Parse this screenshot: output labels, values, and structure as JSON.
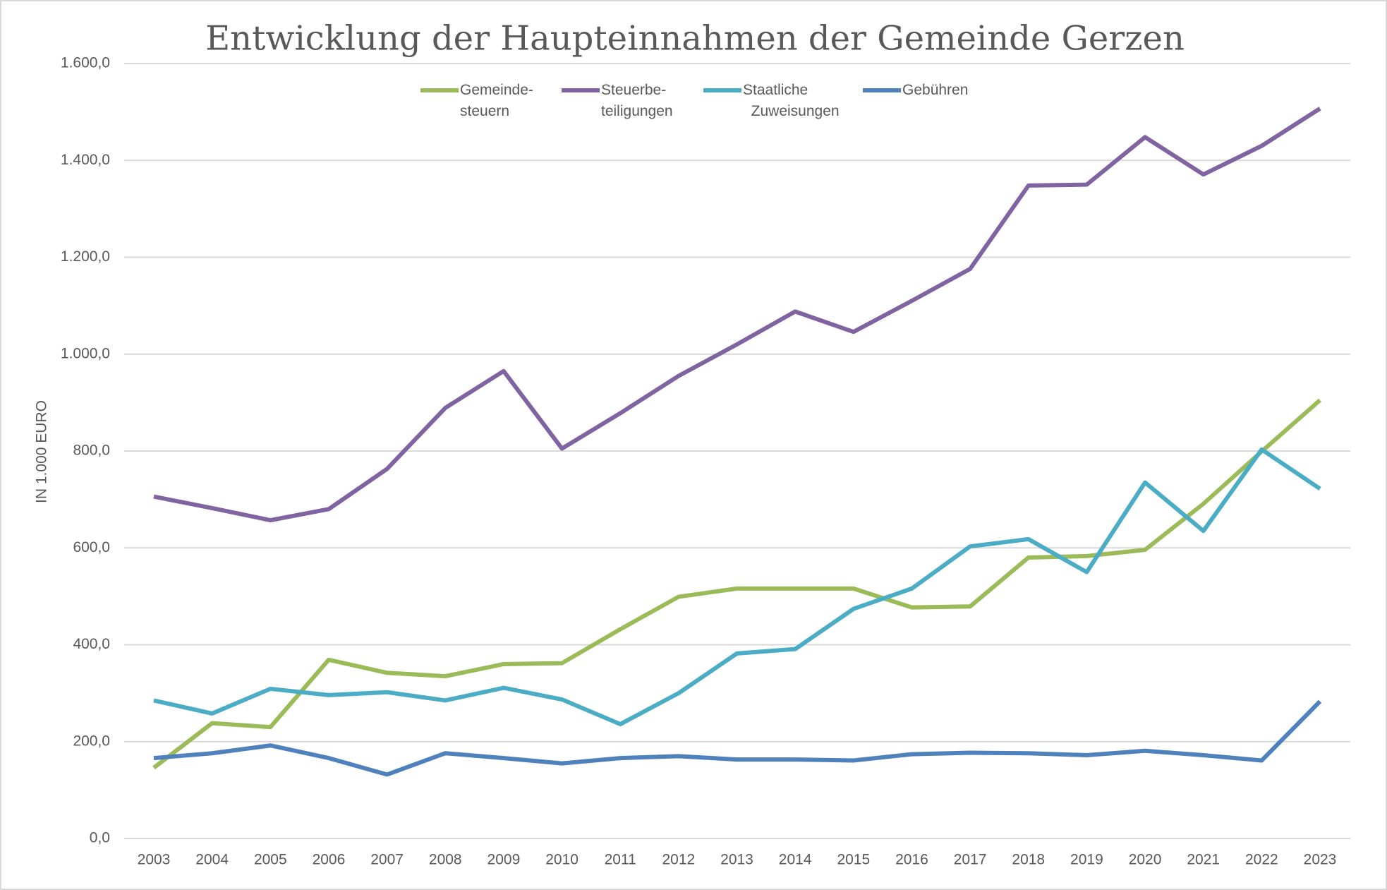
{
  "chart_data": {
    "type": "line",
    "title": "Entwicklung der Haupteinnahmen der Gemeinde Gerzen",
    "y_label": "IN 1.000 EURO",
    "categories": [
      "2003",
      "2004",
      "2005",
      "2006",
      "2007",
      "2008",
      "2009",
      "2010",
      "2011",
      "2012",
      "2013",
      "2014",
      "2015",
      "2016",
      "2017",
      "2018",
      "2019",
      "2020",
      "2021",
      "2022",
      "2023"
    ],
    "series": [
      {
        "name": "Gemeinde-\nsteuern",
        "color": "#9bbb59",
        "values": [
          146,
          238,
          230,
          369,
          342,
          335,
          360,
          362,
          432,
          499,
          516,
          516,
          516,
          477,
          479,
          580,
          583,
          596,
          691,
          799,
          905
        ]
      },
      {
        "name": "Steuerbe-\nteiligungen",
        "color": "#8064a2",
        "values": [
          706,
          682,
          657,
          680,
          763,
          889,
          965,
          805,
          878,
          955,
          1020,
          1088,
          1046,
          1110,
          1176,
          1348,
          1350,
          1448,
          1371,
          1430,
          1507
        ]
      },
      {
        "name": "Staatliche\n  Zuweisungen",
        "color": "#4bacc6",
        "values": [
          285,
          258,
          309,
          296,
          302,
          285,
          311,
          287,
          236,
          300,
          382,
          391,
          474,
          516,
          603,
          618,
          550,
          735,
          635,
          803,
          722
        ]
      },
      {
        "name": "Gebühren",
        "color": "#4f81bd",
        "values": [
          166,
          176,
          192,
          166,
          132,
          176,
          166,
          155,
          166,
          170,
          163,
          163,
          161,
          174,
          177,
          176,
          172,
          181,
          172,
          161,
          283
        ]
      }
    ],
    "ylim": [
      0,
      1600
    ],
    "yticks": [
      {
        "value": 0,
        "label": "0,0"
      },
      {
        "value": 200,
        "label": "200,0"
      },
      {
        "value": 400,
        "label": "400,0"
      },
      {
        "value": 600,
        "label": "600,0"
      },
      {
        "value": 800,
        "label": "800,0"
      },
      {
        "value": 1000,
        "label": "1.000,0"
      },
      {
        "value": 1200,
        "label": "1.200,0"
      },
      {
        "value": 1400,
        "label": "1.400,0"
      },
      {
        "value": 1600,
        "label": "1.600,0"
      }
    ],
    "grid": true,
    "legend": "top"
  }
}
